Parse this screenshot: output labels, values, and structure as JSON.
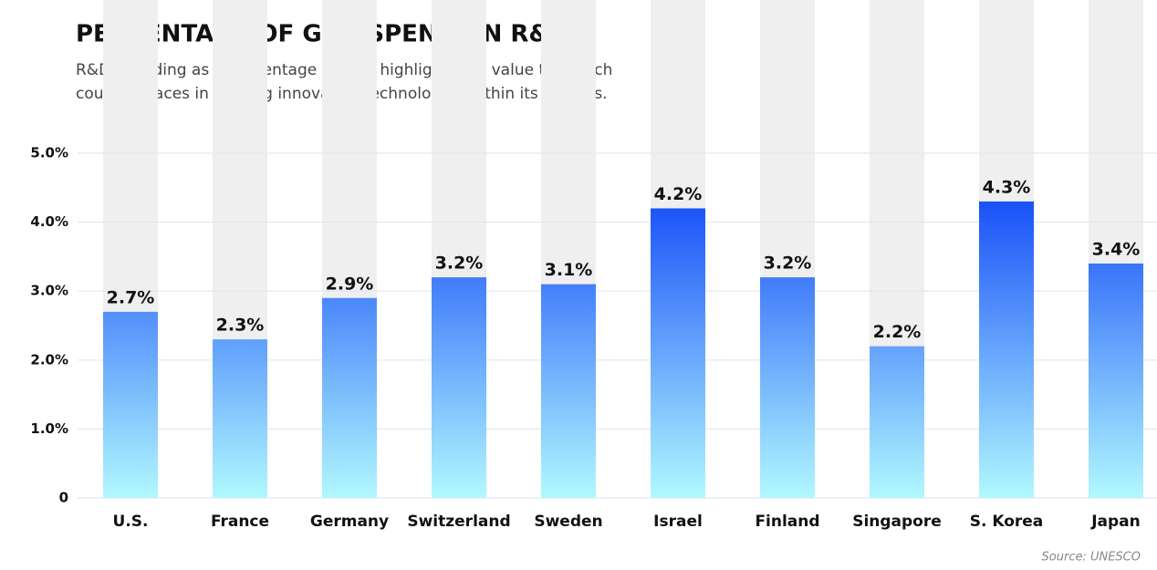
{
  "chart_data": {
    "type": "bar",
    "title": "PERCENTAGE OF GDP SPENT ON R&D",
    "subtitle": [
      "R&D spending as a percentage of GDP highlights the value that each",
      "country places in funding innovative technologies within its borders."
    ],
    "categories": [
      "U.S.",
      "France",
      "Germany",
      "Switzerland",
      "Sweden",
      "Israel",
      "Finland",
      "Singapore",
      "S. Korea",
      "Japan"
    ],
    "values": [
      2.7,
      2.3,
      2.9,
      3.2,
      3.1,
      4.2,
      3.2,
      2.2,
      4.3,
      3.4
    ],
    "value_labels": [
      "2.7%",
      "2.3%",
      "2.9%",
      "3.2%",
      "3.1%",
      "4.2%",
      "3.2%",
      "2.2%",
      "4.3%",
      "3.4%"
    ],
    "gradient": [
      "#0036f7",
      "#b2f8ff"
    ],
    "ylim": [
      0,
      5
    ],
    "yticks": [
      0,
      {
        "value": 1,
        "label": "1.0%"
      },
      {
        "value": 2,
        "label": "2.0%"
      },
      {
        "value": 3,
        "label": "3.0%"
      },
      {
        "value": 4,
        "label": "4.0%"
      },
      {
        "value": 5,
        "label": "5.0%"
      }
    ],
    "grid": true,
    "source": "Source: UNESCO"
  }
}
